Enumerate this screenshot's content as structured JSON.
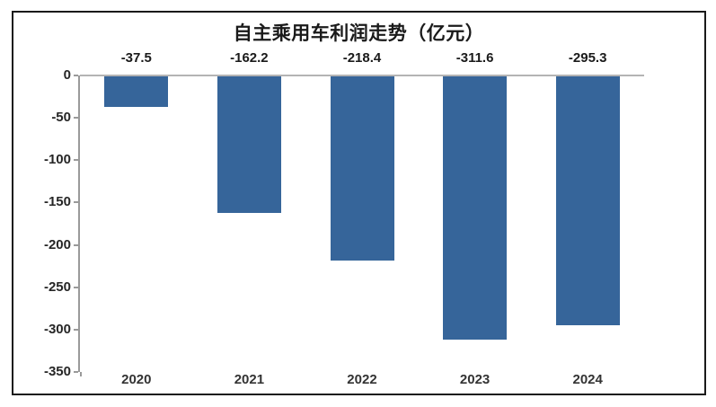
{
  "chart_data": {
    "type": "bar",
    "title": "自主乘用车利润走势（亿元）",
    "categories": [
      "2020",
      "2021",
      "2022",
      "2023",
      "2024"
    ],
    "values": [
      -37.5,
      -162.2,
      -218.4,
      -311.6,
      -295.3
    ],
    "value_labels": [
      "-37.5",
      "-162.2",
      "-218.4",
      "-311.6",
      "-295.3"
    ],
    "xlabel": "",
    "ylabel": "",
    "ylim": [
      -350,
      0
    ],
    "yticks": [
      0,
      -50,
      -100,
      -150,
      -200,
      -250,
      -300,
      -350
    ],
    "ytick_labels": [
      "0",
      "-50",
      "-100",
      "-150",
      "-200",
      "-250",
      "-300",
      "-350"
    ],
    "grid": false,
    "legend": null,
    "colors": {
      "bar": "#36659a",
      "axis": "#9a9a9a",
      "zero_line": "#b4b4b4",
      "text": "#1a1a1a",
      "frame_border": "#1a1a1a",
      "background": "#ffffff"
    }
  }
}
